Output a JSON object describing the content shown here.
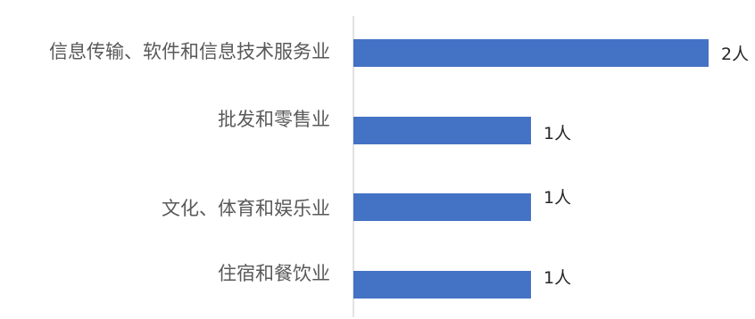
{
  "chart_data": {
    "type": "bar",
    "orientation": "horizontal",
    "categories": [
      "信息传输、软件和信息技术服务业",
      "批发和零售业",
      "文化、体育和娱乐业",
      "住宿和餐饮业"
    ],
    "values": [
      2,
      1,
      1,
      1
    ],
    "data_labels": [
      "2人",
      "1人",
      "1人",
      "1人"
    ],
    "title": "",
    "xlabel": "",
    "ylabel": "",
    "xlim": [
      0,
      2
    ],
    "grid": false,
    "legend": "none",
    "colors": {
      "bar": "#4472C4",
      "axis": "#D9D9D9",
      "category_text": "#595959",
      "label_text": "#262626"
    }
  }
}
